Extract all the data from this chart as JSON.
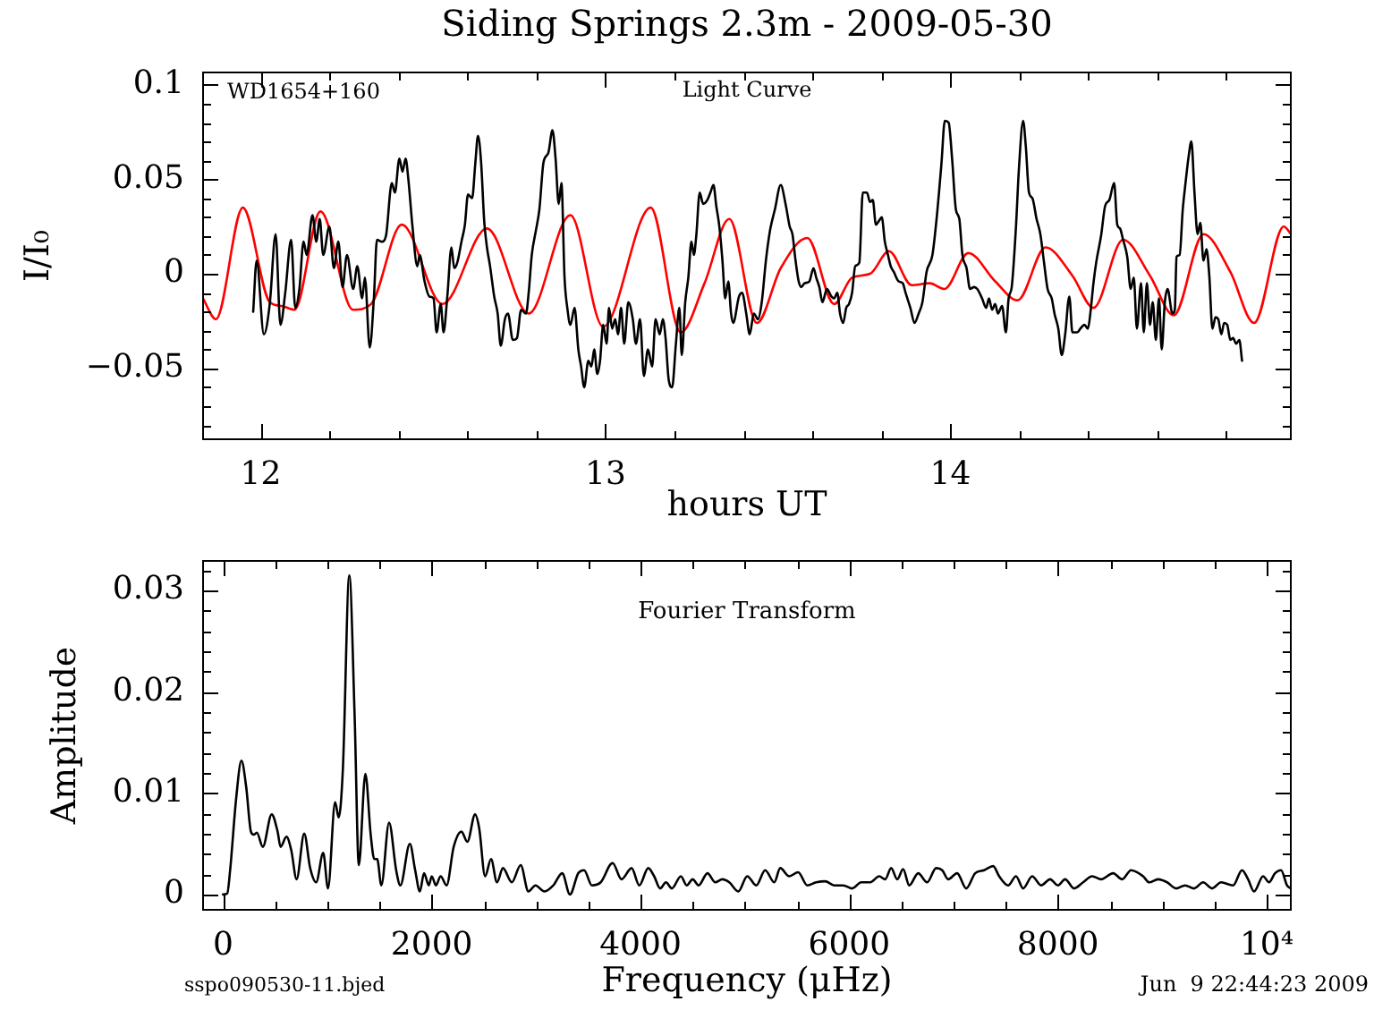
{
  "chart_data": [
    {
      "type": "line",
      "title": "Siding Springs 2.3m - 2009-05-30",
      "xlabel": "hours UT",
      "ylabel": "I/I₀",
      "annotations": [
        "WD1654+160",
        "Light Curve"
      ],
      "xlim": [
        11.83,
        14.99
      ],
      "xticks": [
        12,
        {
          "value": 12.2,
          "label": null
        },
        {
          "value": 12.4,
          "label": null
        },
        {
          "value": 12.6,
          "label": null
        },
        {
          "value": 12.8,
          "label": null
        },
        13,
        {
          "value": 13.2,
          "label": null
        },
        {
          "value": 13.4,
          "label": null
        },
        {
          "value": 13.6,
          "label": null
        },
        {
          "value": 13.8,
          "label": null
        },
        14,
        {
          "value": 14.2,
          "label": null
        },
        {
          "value": 14.4,
          "label": null
        },
        {
          "value": 14.6,
          "label": null
        },
        {
          "value": 14.8,
          "label": null
        }
      ],
      "ylim": [
        -0.088,
        0.107
      ],
      "yticks": [
        {
          "value": -0.08,
          "label": null
        },
        {
          "value": -0.07,
          "label": null
        },
        {
          "value": -0.06,
          "label": null
        },
        -0.05,
        {
          "value": -0.04,
          "label": null
        },
        {
          "value": -0.03,
          "label": null
        },
        {
          "value": -0.02,
          "label": null
        },
        {
          "value": -0.01,
          "label": null
        },
        0,
        {
          "value": 0.01,
          "label": null
        },
        {
          "value": 0.02,
          "label": null
        },
        {
          "value": 0.03,
          "label": null
        },
        {
          "value": 0.04,
          "label": null
        },
        0.05,
        {
          "value": 0.06,
          "label": null
        },
        {
          "value": 0.07,
          "label": null
        },
        {
          "value": 0.08,
          "label": null
        },
        {
          "value": 0.09,
          "label": null
        },
        0.1
      ],
      "series": [
        {
          "color": "#000000",
          "x": [
            11.978,
            11.988,
            12.009,
            12.026,
            12.043,
            12.057,
            12.071,
            12.088,
            12.1,
            12.112,
            12.124,
            12.133,
            12.15,
            12.161,
            12.171,
            12.181,
            12.199,
            12.212,
            12.225,
            12.237,
            12.25,
            12.268,
            12.28,
            12.294,
            12.302,
            12.316,
            12.328,
            12.337,
            12.351,
            12.363,
            12.38,
            12.389,
            12.402,
            12.411,
            12.42,
            12.428,
            12.44,
            12.454,
            12.461,
            12.475,
            12.489,
            12.501,
            12.51,
            12.522,
            12.53,
            12.541,
            12.553,
            12.561,
            12.57,
            12.582,
            12.592,
            12.601,
            12.613,
            12.622,
            12.63,
            12.639,
            12.648,
            12.656,
            12.665,
            12.677,
            12.687,
            12.696,
            12.708,
            12.717,
            12.731,
            12.743,
            12.755,
            12.769,
            12.777,
            12.786,
            12.798,
            12.808,
            12.82,
            12.834,
            12.846,
            12.855,
            12.864,
            12.872,
            12.881,
            12.889,
            12.898,
            12.91,
            12.921,
            12.929,
            12.938,
            12.95,
            12.959,
            12.967,
            12.976,
            12.984,
            12.993,
            13.003,
            13.01,
            13.019,
            13.028,
            13.036,
            13.045,
            13.054,
            13.066,
            13.079,
            13.088,
            13.1,
            13.111,
            13.123,
            13.135,
            13.145,
            13.157,
            13.166,
            13.174,
            13.183,
            13.193,
            13.204,
            13.214,
            13.221,
            13.231,
            13.24,
            13.249,
            13.256,
            13.263,
            13.273,
            13.283,
            13.295,
            13.304,
            13.313,
            13.321,
            13.33,
            13.339,
            13.347,
            13.356,
            13.364,
            13.37,
            13.387,
            13.396,
            13.408,
            13.418,
            13.43,
            13.442,
            13.453,
            13.465,
            13.477,
            13.491,
            13.508,
            13.522,
            13.534,
            13.542,
            13.551,
            13.56,
            13.568,
            13.577,
            13.591,
            13.603,
            13.611,
            13.62,
            13.629,
            13.642,
            13.655,
            13.663,
            13.672,
            13.68,
            13.689,
            13.698,
            13.706,
            13.715,
            13.724,
            13.736,
            13.746,
            13.758,
            13.767,
            13.775,
            13.784,
            13.793,
            13.801,
            13.81,
            13.819,
            13.827,
            13.836,
            13.85,
            13.862,
            13.87,
            13.884,
            13.896,
            13.908,
            13.919,
            13.931,
            13.948,
            13.96,
            13.974,
            13.984,
            13.995,
            14.005,
            14.016,
            14.026,
            14.035,
            14.047,
            14.057,
            14.069,
            14.078,
            14.092,
            14.104,
            14.112,
            14.121,
            14.13,
            14.138,
            14.15,
            14.161,
            14.169,
            14.178,
            14.19,
            14.199,
            14.211,
            14.219,
            14.228,
            14.238,
            14.25,
            14.261,
            14.271,
            14.282,
            14.294,
            14.302,
            14.313,
            14.323,
            14.333,
            14.345,
            14.354,
            14.368,
            14.377,
            14.389,
            14.399,
            14.406,
            14.415,
            14.423,
            14.437,
            14.449,
            14.461,
            14.475,
            14.484,
            14.492,
            14.501,
            14.513,
            14.523,
            14.532,
            14.541,
            14.553,
            14.561,
            14.57,
            14.579,
            14.587,
            14.596,
            14.605,
            14.613,
            14.622,
            14.63,
            14.644,
            14.651,
            14.656,
            14.665,
            14.674,
            14.682,
            14.691,
            14.699,
            14.708,
            14.717,
            14.725,
            14.734,
            14.743,
            14.751,
            14.76,
            14.769,
            14.777,
            14.786,
            14.794,
            14.803,
            14.812,
            14.82,
            14.829,
            14.838,
            14.846
          ],
          "values": [
            -0.02,
            0.007,
            -0.032,
            -0.016,
            0.021,
            -0.027,
            -0.01,
            0.018,
            -0.018,
            -0.008,
            0.017,
            0.01,
            0.031,
            0.017,
            0.029,
            0.01,
            0.025,
            0.003,
            0.017,
            -0.007,
            0.01,
            -0.008,
            0.004,
            -0.013,
            -0.002,
            -0.039,
            -0.013,
            0.018,
            0.017,
            0.02,
            0.048,
            0.043,
            0.061,
            0.054,
            0.061,
            0.05,
            0.025,
            0.004,
            0.01,
            -0.004,
            -0.012,
            -0.013,
            -0.031,
            -0.016,
            -0.031,
            -0.012,
            0.014,
            0.003,
            0.006,
            0.017,
            0.026,
            0.042,
            0.04,
            0.058,
            0.073,
            0.059,
            0.028,
            0.014,
            0.004,
            -0.012,
            -0.021,
            -0.038,
            -0.024,
            -0.021,
            -0.035,
            -0.034,
            -0.019,
            -0.021,
            -0.01,
            0.01,
            0.023,
            0.034,
            0.059,
            0.064,
            0.076,
            0.061,
            0.037,
            0.048,
            -0.002,
            -0.018,
            -0.027,
            -0.018,
            -0.04,
            -0.049,
            -0.06,
            -0.046,
            -0.049,
            -0.04,
            -0.053,
            -0.046,
            -0.027,
            -0.037,
            -0.018,
            -0.029,
            -0.024,
            -0.032,
            -0.018,
            -0.037,
            -0.015,
            -0.024,
            -0.037,
            -0.024,
            -0.054,
            -0.04,
            -0.049,
            -0.024,
            -0.032,
            -0.024,
            -0.034,
            -0.056,
            -0.06,
            -0.037,
            -0.018,
            -0.043,
            -0.015,
            -0.002,
            0.017,
            0.01,
            0.02,
            0.043,
            0.037,
            0.039,
            0.043,
            0.047,
            0.036,
            0.025,
            0.007,
            -0.013,
            -0.004,
            -0.021,
            -0.026,
            -0.012,
            -0.01,
            -0.021,
            -0.032,
            -0.021,
            -0.024,
            -0.015,
            0.007,
            0.023,
            0.034,
            0.047,
            0.037,
            0.025,
            0.021,
            0.007,
            -0.004,
            -0.007,
            -0.005,
            -0.004,
            0.003,
            -0.002,
            -0.007,
            -0.015,
            -0.008,
            -0.012,
            -0.013,
            -0.01,
            -0.021,
            -0.026,
            -0.018,
            -0.016,
            -0.01,
            0.004,
            0.006,
            0.043,
            0.043,
            0.038,
            0.039,
            0.026,
            0.028,
            0.03,
            0.017,
            0.01,
            0.004,
            0.001,
            -0.004,
            -0.005,
            -0.01,
            -0.018,
            -0.026,
            -0.021,
            -0.015,
            0.001,
            0.01,
            0.029,
            0.058,
            0.081,
            0.08,
            0.061,
            0.034,
            0.029,
            0.01,
            0.003,
            -0.008,
            -0.007,
            -0.008,
            -0.013,
            -0.018,
            -0.013,
            -0.019,
            -0.016,
            -0.021,
            -0.017,
            -0.031,
            -0.013,
            -0.007,
            0.024,
            0.056,
            0.081,
            0.067,
            0.043,
            0.04,
            0.029,
            0.021,
            0.007,
            -0.008,
            -0.013,
            -0.021,
            -0.029,
            -0.043,
            -0.032,
            -0.012,
            -0.031,
            -0.031,
            -0.029,
            -0.027,
            -0.029,
            -0.021,
            -0.005,
            0.006,
            0.02,
            0.036,
            0.039,
            0.048,
            0.026,
            0.024,
            0.018,
            0.009,
            -0.008,
            -0.002,
            -0.029,
            -0.005,
            -0.031,
            -0.005,
            -0.027,
            -0.015,
            -0.035,
            -0.013,
            -0.04,
            -0.015,
            -0.008,
            -0.021,
            -0.019,
            0.009,
            0.01,
            0.034,
            0.048,
            0.062,
            0.07,
            0.043,
            0.021,
            0.027,
            0.007,
            0.013,
            -0.001,
            -0.029,
            -0.023,
            -0.024,
            -0.032,
            -0.026,
            -0.027,
            -0.035,
            -0.034,
            -0.037,
            -0.035,
            -0.046
          ]
        },
        {
          "color": "#ff0000",
          "x": [
            11.832,
            11.87,
            11.948,
            12.026,
            12.06,
            12.098,
            12.173,
            12.268,
            12.32,
            12.409,
            12.527,
            12.656,
            12.777,
            12.898,
            12.993,
            13.131,
            13.218,
            13.287,
            13.359,
            13.439,
            13.508,
            13.585,
            13.663,
            13.715,
            13.767,
            13.822,
            13.888,
            13.94,
            13.983,
            14.052,
            14.13,
            14.195,
            14.276,
            14.354,
            14.415,
            14.501,
            14.579,
            14.648,
            14.734,
            14.812,
            14.881,
            14.967,
            14.988
          ],
          "values": [
            -0.013,
            -0.024,
            0.035,
            -0.015,
            -0.017,
            -0.019,
            0.033,
            -0.019,
            -0.016,
            0.026,
            -0.016,
            0.024,
            -0.021,
            0.031,
            -0.028,
            0.035,
            -0.031,
            -0.005,
            0.029,
            -0.026,
            0.003,
            0.019,
            -0.016,
            -0.002,
            0.0,
            0.012,
            -0.006,
            -0.005,
            -0.008,
            0.011,
            -0.004,
            -0.014,
            0.014,
            -0.001,
            -0.018,
            0.018,
            -0.001,
            -0.022,
            0.021,
            0.001,
            -0.026,
            0.025,
            0.021
          ]
        }
      ]
    },
    {
      "type": "line",
      "xlabel": "Frequency (μHz)",
      "ylabel": "Amplitude",
      "annotations": [
        "Fourier Transform",
        "sspo090530-11.bjed",
        "Jun  9 22:44:23 2009"
      ],
      "xlim": [
        -200,
        10240
      ],
      "xticks": [
        0,
        {
          "value": 500,
          "label": null
        },
        {
          "value": 1000,
          "label": null
        },
        {
          "value": 1500,
          "label": null
        },
        2000,
        {
          "value": 2500,
          "label": null
        },
        {
          "value": 3000,
          "label": null
        },
        {
          "value": 3500,
          "label": null
        },
        4000,
        {
          "value": 4500,
          "label": null
        },
        {
          "value": 5000,
          "label": null
        },
        {
          "value": 5500,
          "label": null
        },
        6000,
        {
          "value": 6500,
          "label": null
        },
        {
          "value": 7000,
          "label": null
        },
        {
          "value": 7500,
          "label": null
        },
        8000,
        {
          "value": 8500,
          "label": null
        },
        {
          "value": 9000,
          "label": null
        },
        {
          "value": 9500,
          "label": null
        },
        {
          "value": 10000,
          "label": "10⁴"
        }
      ],
      "ylim": [
        -0.0016,
        0.033
      ],
      "yticks": [
        0,
        {
          "value": 0.002,
          "label": null
        },
        {
          "value": 0.004,
          "label": null
        },
        {
          "value": 0.006,
          "label": null
        },
        {
          "value": 0.008,
          "label": null
        },
        0.01,
        {
          "value": 0.012,
          "label": null
        },
        {
          "value": 0.014,
          "label": null
        },
        {
          "value": 0.016,
          "label": null
        },
        {
          "value": 0.018,
          "label": null
        },
        0.02,
        {
          "value": 0.022,
          "label": null
        },
        {
          "value": 0.024,
          "label": null
        },
        {
          "value": 0.026,
          "label": null
        },
        {
          "value": 0.028,
          "label": null
        },
        0.03,
        {
          "value": 0.032,
          "label": null
        }
      ],
      "series": [
        {
          "color": "#000000",
          "x": [
            0,
            40,
            68,
            125,
            176,
            222,
            267,
            295,
            324,
            381,
            466,
            523,
            551,
            608,
            653,
            705,
            778,
            835,
            892,
            960,
            1006,
            1074,
            1108,
            1148,
            1210,
            1261,
            1301,
            1364,
            1415,
            1449,
            1477,
            1517,
            1591,
            1659,
            1699,
            1790,
            1841,
            1886,
            1926,
            1972,
            2000,
            2040,
            2085,
            2142,
            2210,
            2284,
            2341,
            2415,
            2455,
            2511,
            2568,
            2625,
            2682,
            2767,
            2852,
            2926,
            2994,
            3080,
            3165,
            3250,
            3324,
            3404,
            3460,
            3534,
            3619,
            3733,
            3818,
            3915,
            3989,
            4074,
            4131,
            4188,
            4244,
            4301,
            4387,
            4443,
            4500,
            4557,
            4642,
            4716,
            4784,
            4851,
            4937,
            5023,
            5109,
            5195,
            5282,
            5339,
            5425,
            5511,
            5598,
            5684,
            5770,
            5856,
            5943,
            6029,
            6115,
            6201,
            6287,
            6345,
            6402,
            6460,
            6517,
            6575,
            6661,
            6747,
            6833,
            6891,
            6948,
            7034,
            7121,
            7207,
            7293,
            7379,
            7437,
            7523,
            7598,
            7667,
            7753,
            7839,
            7925,
            8000,
            8069,
            8155,
            8241,
            8328,
            8414,
            8529,
            8615,
            8701,
            8816,
            8874,
            8960,
            9046,
            9132,
            9218,
            9305,
            9391,
            9477,
            9563,
            9678,
            9764,
            9822,
            9879,
            9966,
            10023,
            10080,
            10138,
            10195,
            10230
          ],
          "values": [
            0,
            0.0001,
            0.0024,
            0.0094,
            0.0132,
            0.0106,
            0.0062,
            0.0059,
            0.0061,
            0.0047,
            0.0079,
            0.0062,
            0.0047,
            0.0057,
            0.0044,
            0.0015,
            0.006,
            0.0026,
            0.0012,
            0.0041,
            0.0006,
            0.0091,
            0.0076,
            0.0123,
            0.0315,
            0.0176,
            0.0029,
            0.0119,
            0.0059,
            0.0035,
            0.0035,
            0.0009,
            0.0071,
            0.0024,
            0.0009,
            0.005,
            0.0024,
            0.0003,
            0.0021,
            0.0009,
            0.0018,
            0.0009,
            0.0018,
            0.0009,
            0.0047,
            0.0062,
            0.0052,
            0.0079,
            0.0065,
            0.0018,
            0.0035,
            0.0012,
            0.0026,
            0.0012,
            0.0029,
            0.0003,
            0.0009,
            0.0003,
            0.0009,
            0.0021,
            0,
            0.0021,
            0.0024,
            0.0009,
            0.0012,
            0.0031,
            0.0015,
            0.0026,
            0.0009,
            0.0026,
            0.0018,
            0.0006,
            0.0012,
            0.0006,
            0.0018,
            0.0009,
            0.0015,
            0.0009,
            0.0021,
            0.0012,
            0.0015,
            0.0012,
            0.0003,
            0.0018,
            0.0009,
            0.0024,
            0.0012,
            0.0026,
            0.0018,
            0.0022,
            0.0009,
            0.0012,
            0.0013,
            0.0009,
            0.0009,
            0.0006,
            0.0012,
            0.0012,
            0.0018,
            0.0015,
            0.0026,
            0.0015,
            0.0025,
            0.0009,
            0.0021,
            0.0012,
            0.0026,
            0.0024,
            0.0015,
            0.0021,
            0.0006,
            0.0021,
            0.0024,
            0.0028,
            0.0018,
            0.0009,
            0.0018,
            0.0006,
            0.0018,
            0.0009,
            0.0015,
            0.0009,
            0.0015,
            0.0006,
            0.0012,
            0.0018,
            0.0015,
            0.0021,
            0.0015,
            0.0024,
            0.0018,
            0.0012,
            0.0015,
            0.0012,
            0.0006,
            0.0009,
            0.0006,
            0.0012,
            0.0006,
            0.0012,
            0.0009,
            0.0024,
            0.0015,
            0.0003,
            0.0018,
            0.0012,
            0.0021,
            0.0024,
            0.0009,
            0.0006
          ]
        }
      ]
    }
  ]
}
